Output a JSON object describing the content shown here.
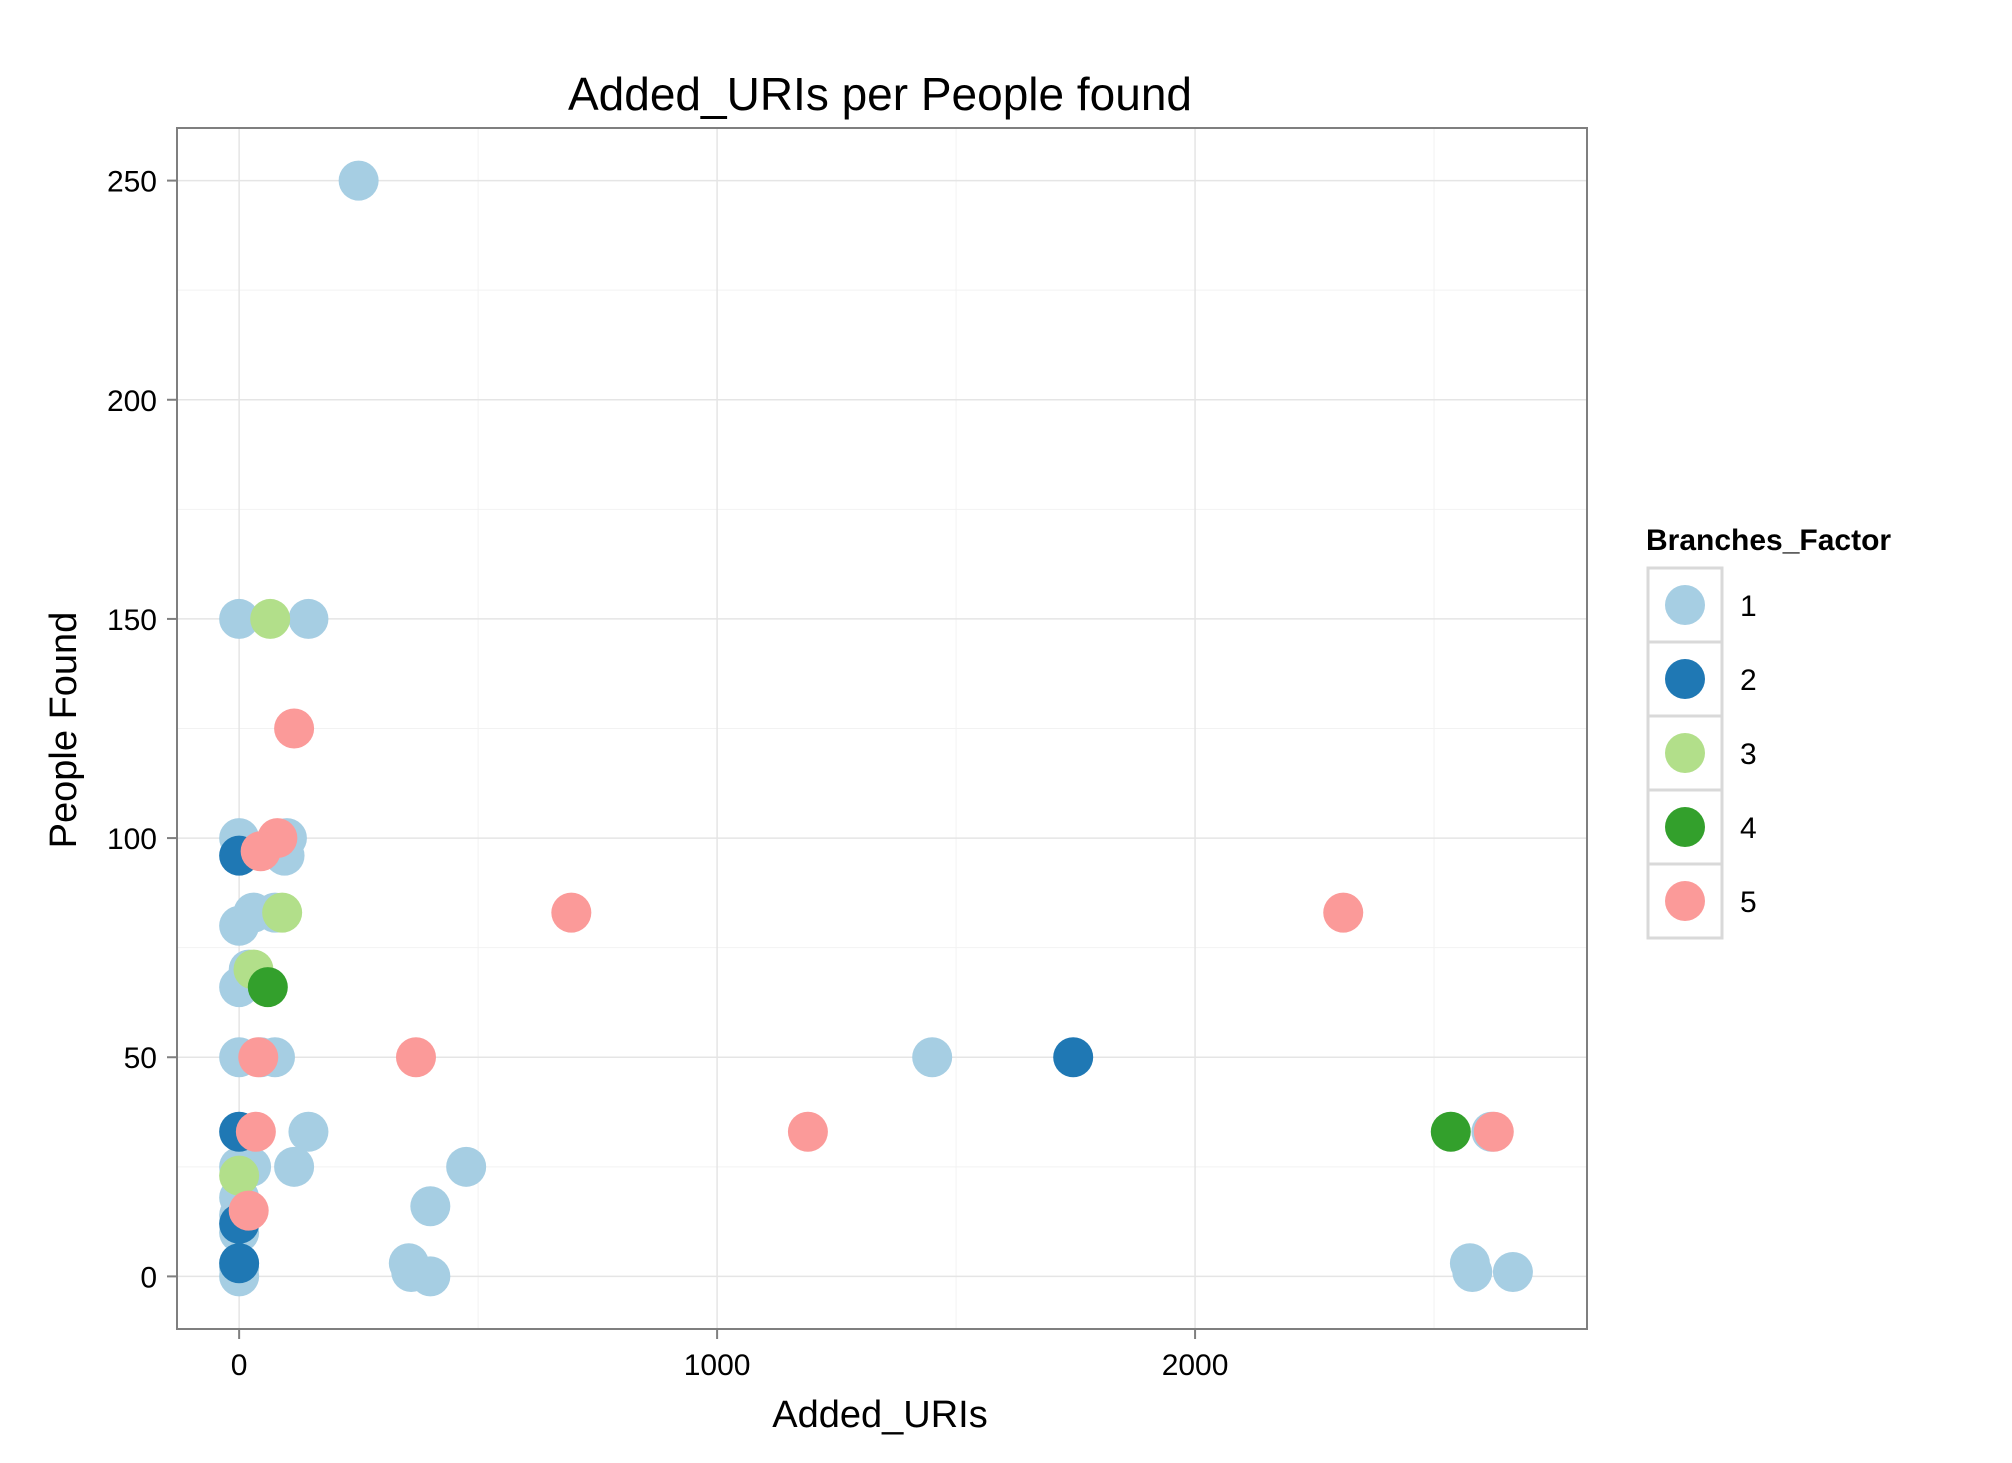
{
  "chart_data": {
    "type": "scatter",
    "title": "Added_URIs per People found",
    "xlabel": "Added_URIs",
    "ylabel": "People Found",
    "xlim": [
      -130,
      2820
    ],
    "ylim": [
      -12,
      262
    ],
    "x_ticks": [
      0,
      1000,
      2000
    ],
    "x_tick_labels": [
      "0",
      "1000",
      "2000"
    ],
    "y_ticks": [
      0,
      50,
      100,
      150,
      200,
      250
    ],
    "y_tick_labels": [
      "0",
      "50",
      "100",
      "150",
      "200",
      "250"
    ],
    "grid": true,
    "legend": {
      "title": "Branches_Factor",
      "position": "right"
    },
    "series": [
      {
        "name": "1",
        "color": "#a6cee3",
        "points": [
          [
            250,
            250
          ],
          [
            0,
            150
          ],
          [
            145,
            150
          ],
          [
            0,
            100
          ],
          [
            100,
            100
          ],
          [
            95,
            96
          ],
          [
            0,
            80
          ],
          [
            30,
            83
          ],
          [
            75,
            83
          ],
          [
            20,
            70
          ],
          [
            0,
            66
          ],
          [
            0,
            50
          ],
          [
            45,
            50
          ],
          [
            75,
            50
          ],
          [
            145,
            33
          ],
          [
            115,
            25
          ],
          [
            0,
            25
          ],
          [
            25,
            25
          ],
          [
            0,
            18
          ],
          [
            0,
            14
          ],
          [
            0,
            10
          ],
          [
            0,
            2
          ],
          [
            0,
            0
          ],
          [
            355,
            3
          ],
          [
            360,
            1
          ],
          [
            400,
            0
          ],
          [
            400,
            16
          ],
          [
            475,
            25
          ],
          [
            1450,
            50
          ],
          [
            2575,
            3
          ],
          [
            2580,
            1
          ],
          [
            2665,
            1
          ],
          [
            2620,
            33
          ]
        ]
      },
      {
        "name": "2",
        "color": "#1f78b4",
        "points": [
          [
            0,
            96
          ],
          [
            0,
            33
          ],
          [
            0,
            12
          ],
          [
            0,
            3
          ],
          [
            1745,
            50
          ]
        ]
      },
      {
        "name": "3",
        "color": "#b2df8a",
        "points": [
          [
            65,
            150
          ],
          [
            90,
            83
          ],
          [
            30,
            70
          ],
          [
            0,
            23
          ]
        ]
      },
      {
        "name": "4",
        "color": "#33a02c",
        "points": [
          [
            60,
            66
          ],
          [
            2535,
            33
          ]
        ]
      },
      {
        "name": "5",
        "color": "#fb9a99",
        "points": [
          [
            115,
            125
          ],
          [
            80,
            100
          ],
          [
            45,
            97
          ],
          [
            40,
            50
          ],
          [
            35,
            33
          ],
          [
            20,
            15
          ],
          [
            370,
            50
          ],
          [
            695,
            83
          ],
          [
            1190,
            33
          ],
          [
            2310,
            83
          ],
          [
            2625,
            33
          ]
        ]
      }
    ]
  }
}
